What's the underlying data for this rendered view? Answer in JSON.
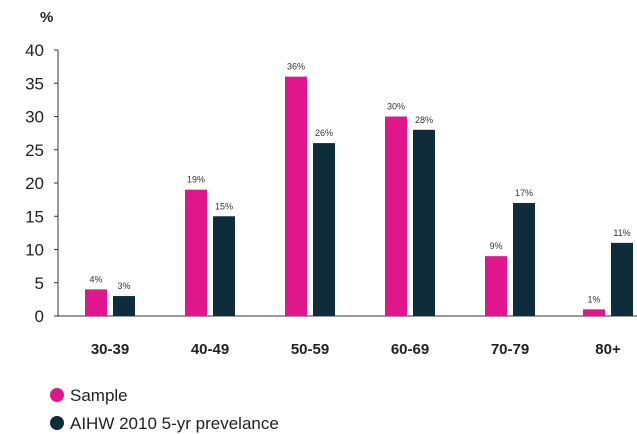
{
  "chart_data": {
    "type": "bar",
    "ylabel": "%",
    "ylim": [
      0,
      40
    ],
    "yticks": [
      0,
      5,
      10,
      15,
      20,
      25,
      30,
      35,
      40
    ],
    "categories": [
      "30-39",
      "40-49",
      "50-59",
      "60-69",
      "70-79",
      "80+"
    ],
    "series": [
      {
        "name": "Sample",
        "color": "#e0168c",
        "values": [
          4,
          19,
          36,
          30,
          9,
          1
        ],
        "labels": [
          "4%",
          "19%",
          "36%",
          "30%",
          "9%",
          "1%"
        ]
      },
      {
        "name": "AIHW 2010 5-yr prevelance",
        "color": "#0d2d3a",
        "values": [
          3,
          15,
          26,
          28,
          17,
          11
        ],
        "labels": [
          "3%",
          "15%",
          "26%",
          "28%",
          "17%",
          "11%"
        ]
      }
    ],
    "grid": false,
    "legend_position": "bottom-left"
  }
}
